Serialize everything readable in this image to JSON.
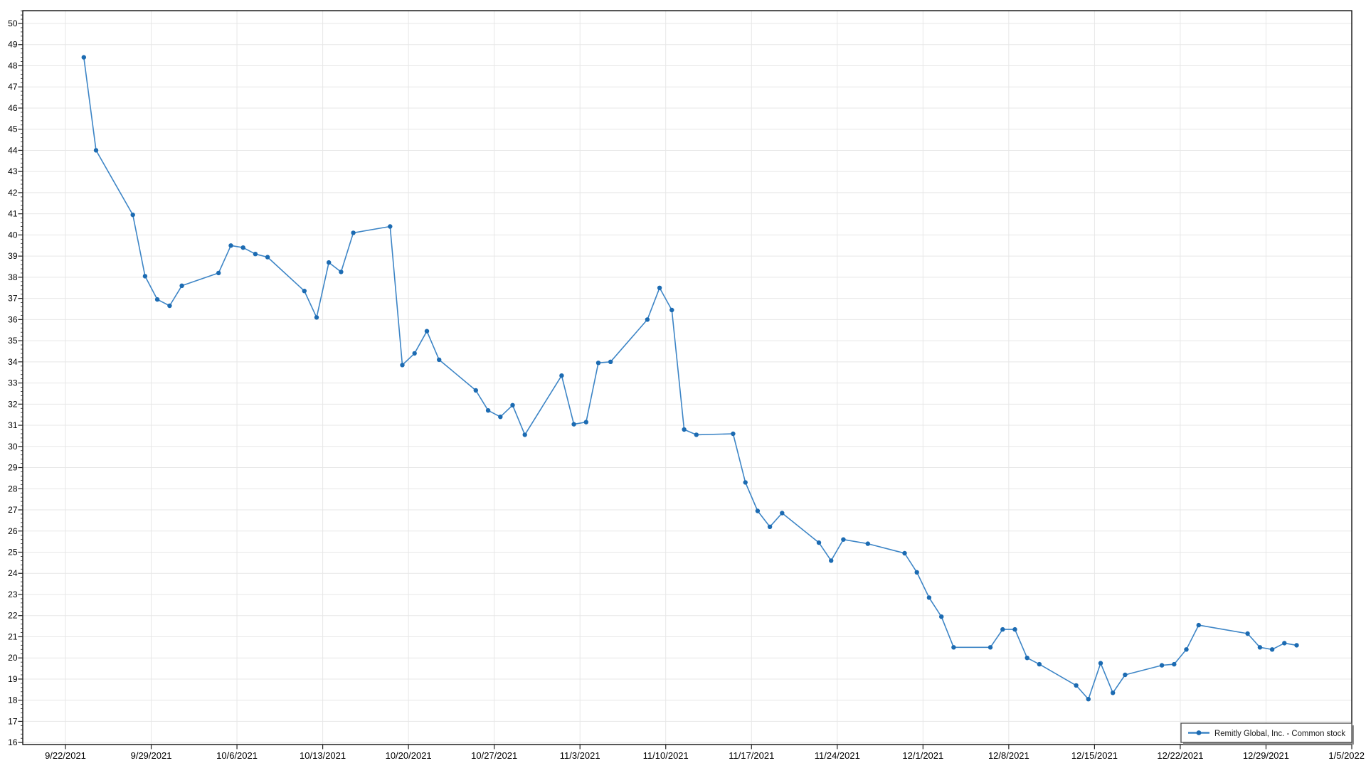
{
  "chart_data": {
    "type": "line",
    "title": "",
    "xlabel": "",
    "ylabel": "",
    "grid": true,
    "background": "#ffffff",
    "legend": {
      "position": "bottom-right",
      "label": "Remitly Global, Inc. - Common stock"
    },
    "x_axis": {
      "start_date": "9/22/2021",
      "end_date": "1/5/2022",
      "tick_interval_days": 7,
      "tick_labels": [
        "9/22/2021",
        "9/29/2021",
        "10/6/2021",
        "10/13/2021",
        "10/20/2021",
        "10/27/2021",
        "11/3/2021",
        "11/10/2021",
        "11/17/2021",
        "11/24/2021",
        "12/1/2021",
        "12/8/2021",
        "12/15/2021",
        "12/22/2021",
        "12/29/2021",
        "1/5/2022"
      ]
    },
    "y_axis": {
      "min": 16,
      "max": 50,
      "tick_step": 1,
      "minor_ticks_per_major": 4,
      "display_range": [
        15.9,
        50.6
      ],
      "tick_labels": [
        "50",
        "49",
        "48",
        "47",
        "46",
        "45",
        "44",
        "43",
        "42",
        "41",
        "40",
        "39",
        "38",
        "37",
        "36",
        "35",
        "34",
        "33",
        "32",
        "31",
        "30",
        "29",
        "28",
        "27",
        "26",
        "25",
        "24",
        "23",
        "22",
        "21",
        "20",
        "19",
        "18",
        "17",
        "16"
      ]
    },
    "series": [
      {
        "name": "Remitly Global, Inc. - Common stock",
        "dates": [
          "9/23/2021",
          "9/24/2021",
          "9/27/2021",
          "9/28/2021",
          "9/29/2021",
          "9/30/2021",
          "10/1/2021",
          "10/4/2021",
          "10/5/2021",
          "10/6/2021",
          "10/7/2021",
          "10/8/2021",
          "10/11/2021",
          "10/12/2021",
          "10/13/2021",
          "10/14/2021",
          "10/15/2021",
          "10/18/2021",
          "10/19/2021",
          "10/20/2021",
          "10/21/2021",
          "10/22/2021",
          "10/25/2021",
          "10/26/2021",
          "10/27/2021",
          "10/28/2021",
          "10/29/2021",
          "11/1/2021",
          "11/2/2021",
          "11/3/2021",
          "11/4/2021",
          "11/5/2021",
          "11/8/2021",
          "11/9/2021",
          "11/10/2021",
          "11/11/2021",
          "11/12/2021",
          "11/15/2021",
          "11/16/2021",
          "11/17/2021",
          "11/18/2021",
          "11/19/2021",
          "11/22/2021",
          "11/23/2021",
          "11/24/2021",
          "11/26/2021",
          "11/29/2021",
          "11/30/2021",
          "12/1/2021",
          "12/2/2021",
          "12/3/2021",
          "12/6/2021",
          "12/7/2021",
          "12/8/2021",
          "12/9/2021",
          "12/10/2021",
          "12/13/2021",
          "12/14/2021",
          "12/15/2021",
          "12/16/2021",
          "12/17/2021",
          "12/20/2021",
          "12/21/2021",
          "12/22/2021",
          "12/23/2021",
          "12/27/2021",
          "12/28/2021",
          "12/29/2021",
          "12/30/2021",
          "12/31/2021"
        ],
        "values": [
          48.4,
          44.0,
          40.95,
          38.05,
          36.95,
          36.65,
          37.6,
          38.2,
          39.5,
          39.4,
          39.1,
          38.95,
          37.35,
          36.1,
          38.7,
          38.25,
          40.1,
          40.4,
          33.85,
          34.4,
          35.45,
          34.1,
          32.65,
          31.7,
          31.4,
          31.95,
          30.55,
          33.35,
          31.05,
          31.15,
          33.95,
          34.0,
          36.0,
          37.5,
          36.45,
          30.8,
          30.55,
          30.6,
          28.3,
          26.95,
          26.2,
          26.85,
          25.45,
          24.6,
          25.6,
          25.4,
          24.95,
          24.05,
          22.85,
          21.95,
          20.5,
          20.5,
          21.35,
          21.35,
          20.0,
          19.7,
          18.7,
          18.05,
          19.75,
          18.35,
          19.2,
          19.65,
          19.7,
          20.4,
          21.55,
          21.15,
          20.5,
          20.4,
          20.7,
          20.6
        ]
      }
    ],
    "colors": {
      "line": "#3d85c6",
      "marker": "#1c6bb2",
      "gridline": "#e7e7e7",
      "axis": "#0f0f0f",
      "tick": "#222222",
      "text": "#000000",
      "background": "#ffffff",
      "legend_bg": "#ffffff",
      "legend_border": "#4a4a4a",
      "legend_shadow": "#8e8e8e"
    }
  }
}
